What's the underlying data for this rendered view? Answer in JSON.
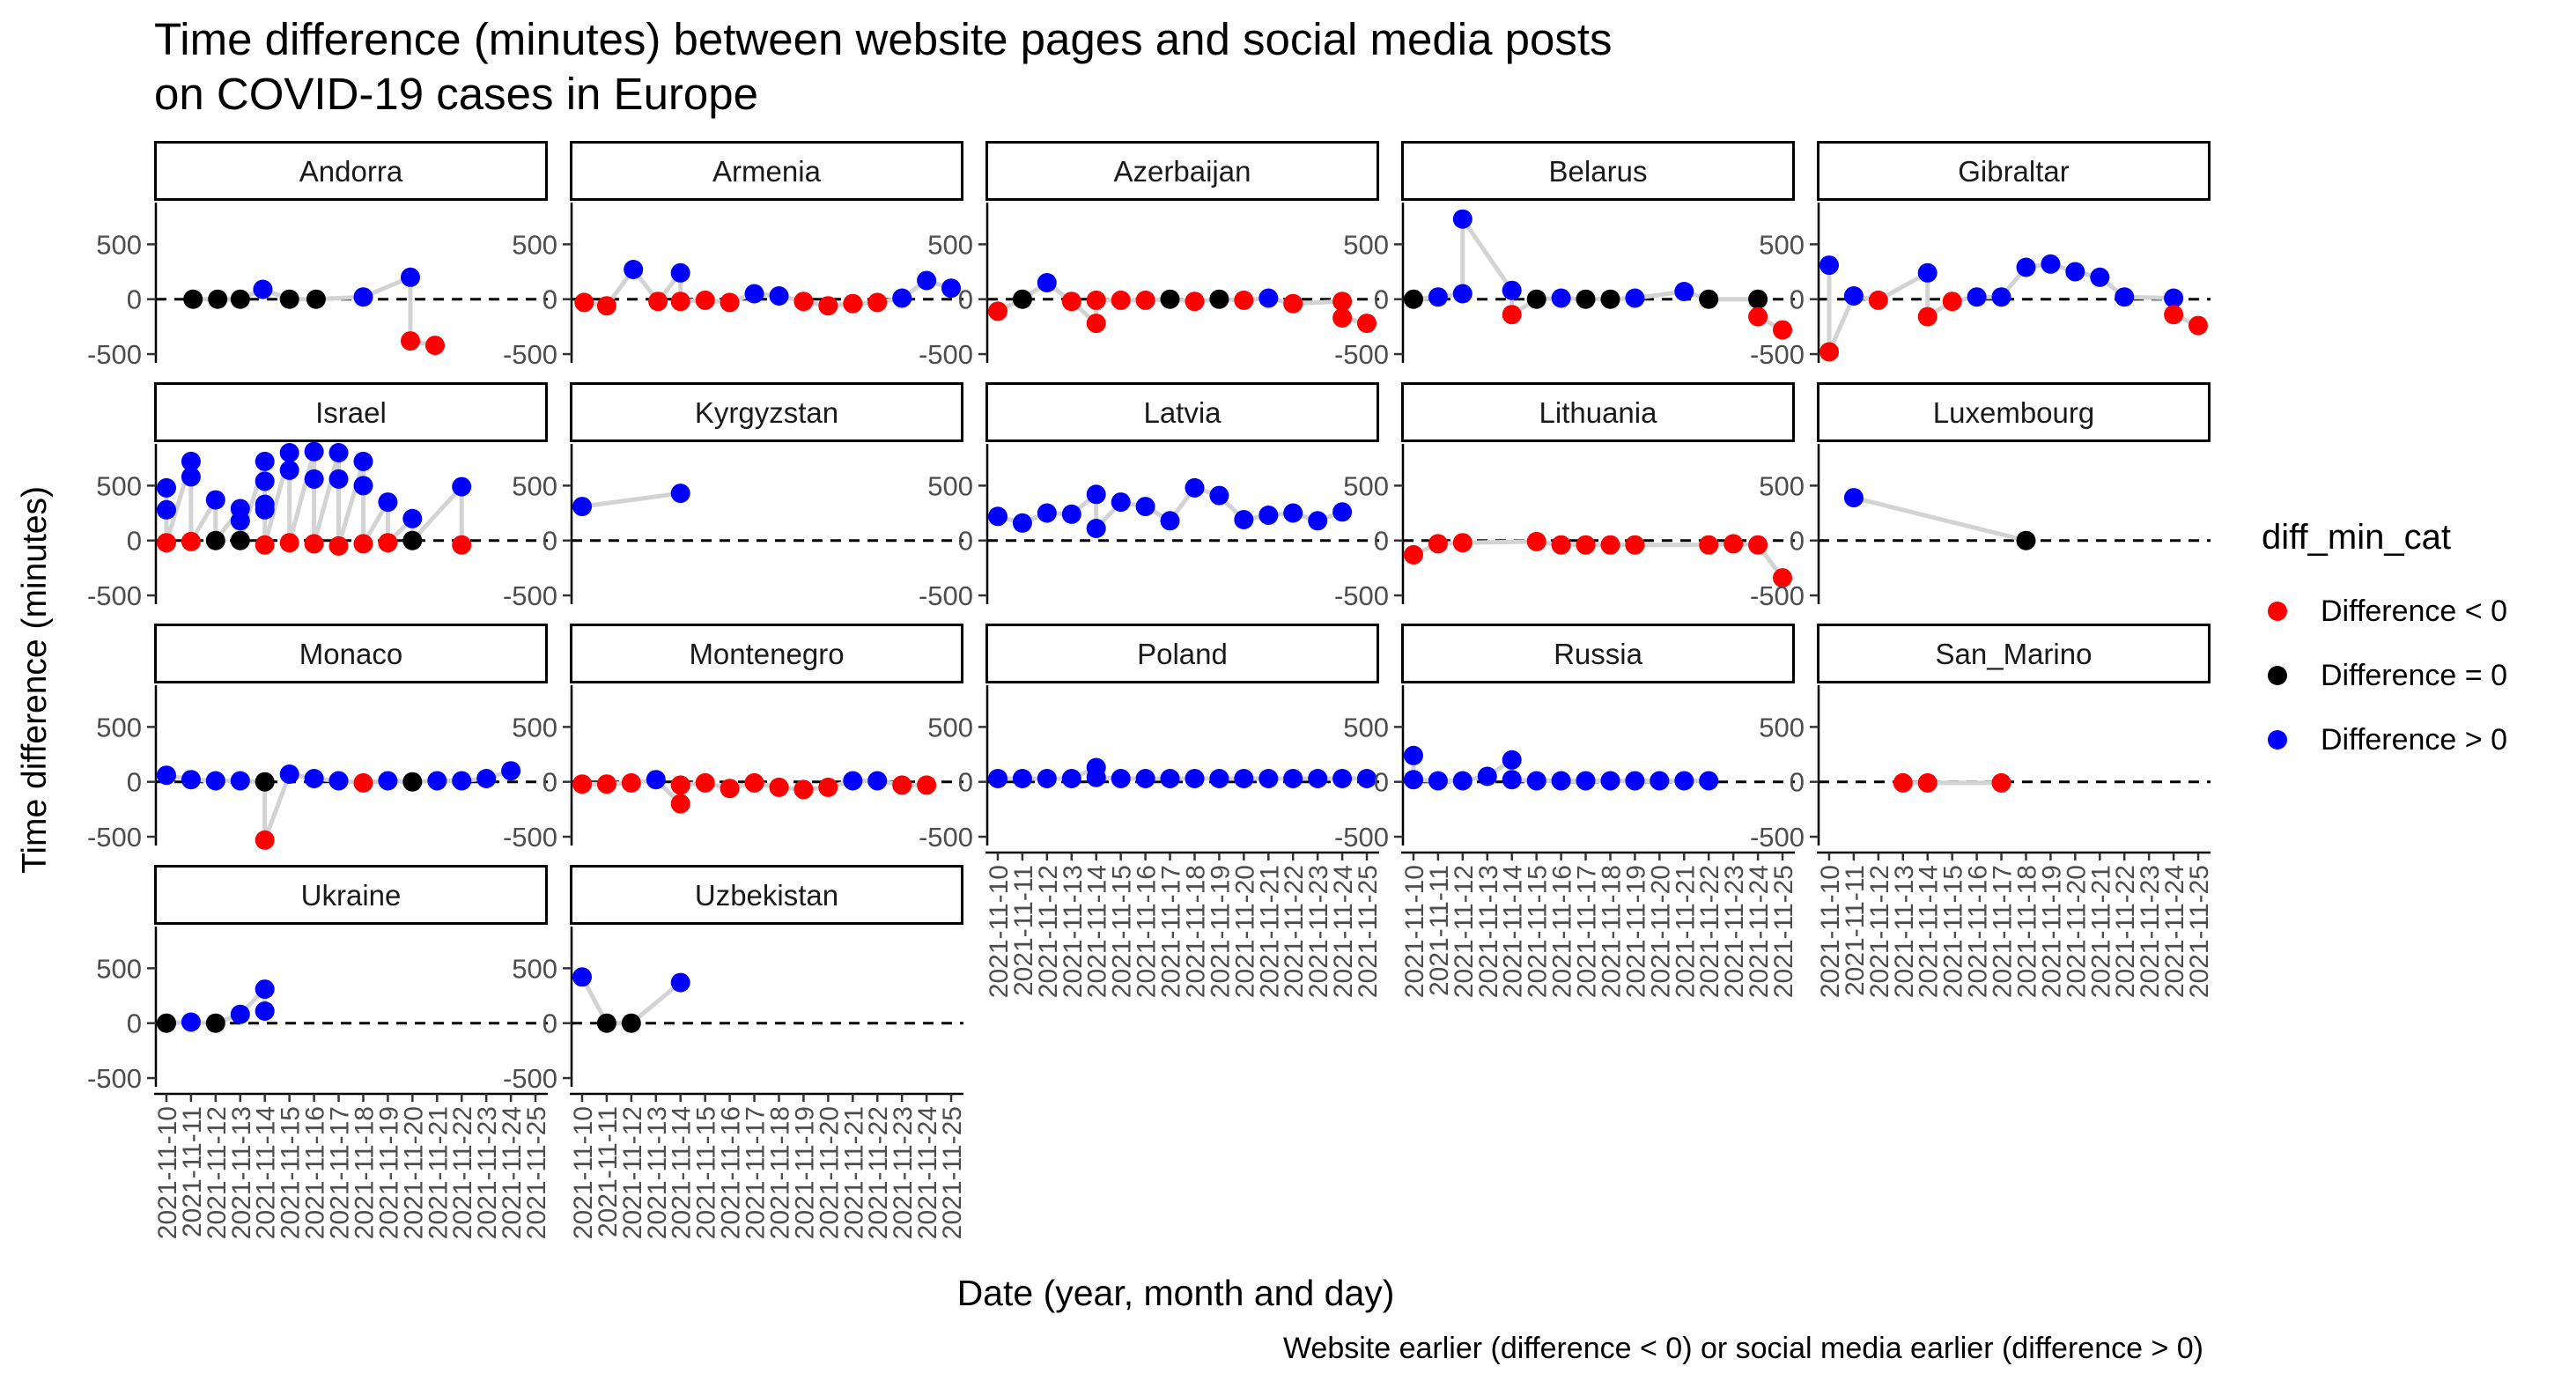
{
  "title": "Time difference (minutes) between website pages and social media posts\non COVID-19 cases in Europe",
  "xlabel": "Date (year, month and day)",
  "ylabel": "Time difference (minutes)",
  "caption": "Website earlier (difference < 0) or social media earlier (difference > 0)",
  "legend": {
    "title": "diff_min_cat",
    "position": "right",
    "items": [
      {
        "label": "Difference < 0",
        "color": "#FF0000"
      },
      {
        "label": "Difference = 0",
        "color": "#000000"
      },
      {
        "label": "Difference > 0",
        "color": "#0000FF"
      }
    ]
  },
  "chart_data": {
    "type": "scatter",
    "facet_grid": "5 columns, shared axes",
    "x_ticks": [
      "2021-11-10",
      "2021-11-11",
      "2021-11-12",
      "2021-11-13",
      "2021-11-14",
      "2021-11-15",
      "2021-11-16",
      "2021-11-17",
      "2021-11-18",
      "2021-11-19",
      "2021-11-20",
      "2021-11-21",
      "2021-11-22",
      "2021-11-23",
      "2021-11-24",
      "2021-11-25"
    ],
    "xlim": [
      "2021-11-09T12:00",
      "2021-11-25T12:00"
    ],
    "y_ticks": [
      500,
      0,
      -500
    ],
    "y_tick_labels": [
      "500",
      "0",
      "-500"
    ],
    "ylim": [
      -580,
      880
    ],
    "reference_line": 0,
    "colors": {
      "neg": "#FF0000",
      "zero": "#000000",
      "pos": "#0000FF",
      "line": "#D3D3D3"
    },
    "panels": [
      {
        "name": "Andorra",
        "points": [
          [
            "2021-11-11T02:00",
            0
          ],
          [
            "2021-11-12T02:00",
            0
          ],
          [
            "2021-11-13T00:00",
            0
          ],
          [
            "2021-11-13T22:00",
            90
          ],
          [
            "2021-11-15T00:00",
            0
          ],
          [
            "2021-11-16T02:00",
            0
          ],
          [
            "2021-11-18T00:00",
            20
          ],
          [
            "2021-11-19T22:00",
            200
          ],
          [
            "2021-11-19T22:00",
            -380
          ],
          [
            "2021-11-20T22:00",
            -420
          ]
        ]
      },
      {
        "name": "Armenia",
        "points": [
          [
            "2021-11-10T02:00",
            -30
          ],
          [
            "2021-11-11T00:00",
            -60
          ],
          [
            "2021-11-12T02:00",
            270
          ],
          [
            "2021-11-13T02:00",
            -20
          ],
          [
            "2021-11-14T00:00",
            240
          ],
          [
            "2021-11-14T00:00",
            -20
          ],
          [
            "2021-11-15T00:00",
            -10
          ],
          [
            "2021-11-16T00:00",
            -30
          ],
          [
            "2021-11-17T00:00",
            50
          ],
          [
            "2021-11-18T00:00",
            30
          ],
          [
            "2021-11-19T00:00",
            -20
          ],
          [
            "2021-11-20T00:00",
            -60
          ],
          [
            "2021-11-21T00:00",
            -40
          ],
          [
            "2021-11-22T00:00",
            -30
          ],
          [
            "2021-11-23T00:00",
            10
          ],
          [
            "2021-11-24T00:00",
            170
          ],
          [
            "2021-11-25T00:00",
            100
          ]
        ]
      },
      {
        "name": "Azerbaijan",
        "points": [
          [
            "2021-11-10T00:00",
            -110
          ],
          [
            "2021-11-11T00:00",
            0
          ],
          [
            "2021-11-12T00:00",
            150
          ],
          [
            "2021-11-13T00:00",
            -20
          ],
          [
            "2021-11-14T00:00",
            -220
          ],
          [
            "2021-11-14T00:00",
            -10
          ],
          [
            "2021-11-15T00:00",
            -10
          ],
          [
            "2021-11-16T00:00",
            -10
          ],
          [
            "2021-11-17T00:00",
            0
          ],
          [
            "2021-11-18T00:00",
            -20
          ],
          [
            "2021-11-19T00:00",
            0
          ],
          [
            "2021-11-20T00:00",
            -10
          ],
          [
            "2021-11-21T00:00",
            10
          ],
          [
            "2021-11-22T00:00",
            -40
          ],
          [
            "2021-11-24T00:00",
            -20
          ],
          [
            "2021-11-24T00:00",
            -170
          ],
          [
            "2021-11-25T00:00",
            -220
          ]
        ]
      },
      {
        "name": "Belarus",
        "points": [
          [
            "2021-11-10T00:00",
            0
          ],
          [
            "2021-11-11T00:00",
            20
          ],
          [
            "2021-11-12T00:00",
            50
          ],
          [
            "2021-11-12T00:00",
            730
          ],
          [
            "2021-11-14T00:00",
            80
          ],
          [
            "2021-11-14T00:00",
            -140
          ],
          [
            "2021-11-15T00:00",
            0
          ],
          [
            "2021-11-16T00:00",
            10
          ],
          [
            "2021-11-17T00:00",
            0
          ],
          [
            "2021-11-18T00:00",
            0
          ],
          [
            "2021-11-19T00:00",
            10
          ],
          [
            "2021-11-21T00:00",
            70
          ],
          [
            "2021-11-22T00:00",
            0
          ],
          [
            "2021-11-24T00:00",
            0
          ],
          [
            "2021-11-24T00:00",
            -160
          ],
          [
            "2021-11-25T00:00",
            -280
          ]
        ]
      },
      {
        "name": "Gibraltar",
        "points": [
          [
            "2021-11-10T00:00",
            310
          ],
          [
            "2021-11-10T00:00",
            -480
          ],
          [
            "2021-11-11T00:00",
            30
          ],
          [
            "2021-11-12T00:00",
            -10
          ],
          [
            "2021-11-14T00:00",
            240
          ],
          [
            "2021-11-14T00:00",
            -160
          ],
          [
            "2021-11-15T00:00",
            -20
          ],
          [
            "2021-11-16T00:00",
            20
          ],
          [
            "2021-11-17T00:00",
            20
          ],
          [
            "2021-11-18T00:00",
            290
          ],
          [
            "2021-11-19T00:00",
            320
          ],
          [
            "2021-11-20T00:00",
            250
          ],
          [
            "2021-11-21T00:00",
            200
          ],
          [
            "2021-11-22T00:00",
            20
          ],
          [
            "2021-11-24T00:00",
            10
          ],
          [
            "2021-11-24T00:00",
            -140
          ],
          [
            "2021-11-25T00:00",
            -240
          ]
        ]
      },
      {
        "name": "Israel",
        "points": [
          [
            "2021-11-10T00:00",
            480
          ],
          [
            "2021-11-10T00:00",
            280
          ],
          [
            "2021-11-10T00:00",
            -20
          ],
          [
            "2021-11-11T00:00",
            720
          ],
          [
            "2021-11-11T00:00",
            580
          ],
          [
            "2021-11-11T00:00",
            -10
          ],
          [
            "2021-11-12T00:00",
            370
          ],
          [
            "2021-11-12T00:00",
            0
          ],
          [
            "2021-11-13T00:00",
            290
          ],
          [
            "2021-11-13T00:00",
            180
          ],
          [
            "2021-11-13T00:00",
            0
          ],
          [
            "2021-11-14T00:00",
            720
          ],
          [
            "2021-11-14T00:00",
            540
          ],
          [
            "2021-11-14T00:00",
            330
          ],
          [
            "2021-11-14T00:00",
            280
          ],
          [
            "2021-11-14T00:00",
            -40
          ],
          [
            "2021-11-15T00:00",
            800
          ],
          [
            "2021-11-15T00:00",
            640
          ],
          [
            "2021-11-15T00:00",
            -20
          ],
          [
            "2021-11-16T00:00",
            810
          ],
          [
            "2021-11-16T00:00",
            560
          ],
          [
            "2021-11-16T00:00",
            -30
          ],
          [
            "2021-11-17T00:00",
            800
          ],
          [
            "2021-11-17T00:00",
            560
          ],
          [
            "2021-11-17T00:00",
            -50
          ],
          [
            "2021-11-18T00:00",
            720
          ],
          [
            "2021-11-18T00:00",
            500
          ],
          [
            "2021-11-18T00:00",
            -30
          ],
          [
            "2021-11-19T00:00",
            350
          ],
          [
            "2021-11-19T00:00",
            -20
          ],
          [
            "2021-11-20T00:00",
            200
          ],
          [
            "2021-11-20T00:00",
            0
          ],
          [
            "2021-11-22T00:00",
            490
          ],
          [
            "2021-11-22T00:00",
            -40
          ]
        ]
      },
      {
        "name": "Kyrgyzstan",
        "points": [
          [
            "2021-11-10T00:00",
            310
          ],
          [
            "2021-11-14T00:00",
            430
          ]
        ]
      },
      {
        "name": "Latvia",
        "points": [
          [
            "2021-11-10T00:00",
            220
          ],
          [
            "2021-11-11T00:00",
            160
          ],
          [
            "2021-11-12T00:00",
            250
          ],
          [
            "2021-11-13T00:00",
            240
          ],
          [
            "2021-11-14T00:00",
            420
          ],
          [
            "2021-11-14T00:00",
            110
          ],
          [
            "2021-11-15T00:00",
            350
          ],
          [
            "2021-11-16T00:00",
            310
          ],
          [
            "2021-11-17T00:00",
            180
          ],
          [
            "2021-11-18T00:00",
            480
          ],
          [
            "2021-11-19T00:00",
            410
          ],
          [
            "2021-11-20T00:00",
            190
          ],
          [
            "2021-11-21T00:00",
            230
          ],
          [
            "2021-11-22T00:00",
            250
          ],
          [
            "2021-11-23T00:00",
            180
          ],
          [
            "2021-11-24T00:00",
            260
          ]
        ]
      },
      {
        "name": "Lithuania",
        "points": [
          [
            "2021-11-10T00:00",
            -130
          ],
          [
            "2021-11-11T00:00",
            -30
          ],
          [
            "2021-11-12T00:00",
            -20
          ],
          [
            "2021-11-15T00:00",
            -10
          ],
          [
            "2021-11-16T00:00",
            -40
          ],
          [
            "2021-11-17T00:00",
            -40
          ],
          [
            "2021-11-18T00:00",
            -40
          ],
          [
            "2021-11-19T00:00",
            -40
          ],
          [
            "2021-11-22T00:00",
            -40
          ],
          [
            "2021-11-23T00:00",
            -30
          ],
          [
            "2021-11-24T00:00",
            -40
          ],
          [
            "2021-11-25T00:00",
            -340
          ]
        ]
      },
      {
        "name": "Luxembourg",
        "points": [
          [
            "2021-11-11T00:00",
            390
          ],
          [
            "2021-11-18T00:00",
            0
          ]
        ]
      },
      {
        "name": "Monaco",
        "points": [
          [
            "2021-11-10T00:00",
            60
          ],
          [
            "2021-11-11T00:00",
            20
          ],
          [
            "2021-11-12T00:00",
            10
          ],
          [
            "2021-11-13T00:00",
            10
          ],
          [
            "2021-11-14T00:00",
            0
          ],
          [
            "2021-11-14T00:00",
            -530
          ],
          [
            "2021-11-15T00:00",
            70
          ],
          [
            "2021-11-16T00:00",
            30
          ],
          [
            "2021-11-17T00:00",
            10
          ],
          [
            "2021-11-18T00:00",
            -10
          ],
          [
            "2021-11-19T00:00",
            10
          ],
          [
            "2021-11-20T00:00",
            0
          ],
          [
            "2021-11-21T00:00",
            10
          ],
          [
            "2021-11-22T00:00",
            10
          ],
          [
            "2021-11-23T00:00",
            30
          ],
          [
            "2021-11-24T00:00",
            100
          ]
        ]
      },
      {
        "name": "Montenegro",
        "points": [
          [
            "2021-11-10T00:00",
            -20
          ],
          [
            "2021-11-11T00:00",
            -20
          ],
          [
            "2021-11-12T00:00",
            -10
          ],
          [
            "2021-11-13T00:00",
            20
          ],
          [
            "2021-11-14T00:00",
            -200
          ],
          [
            "2021-11-14T00:00",
            -30
          ],
          [
            "2021-11-15T00:00",
            -10
          ],
          [
            "2021-11-16T00:00",
            -60
          ],
          [
            "2021-11-17T00:00",
            -10
          ],
          [
            "2021-11-18T00:00",
            -50
          ],
          [
            "2021-11-19T00:00",
            -70
          ],
          [
            "2021-11-20T00:00",
            -50
          ],
          [
            "2021-11-21T00:00",
            10
          ],
          [
            "2021-11-22T00:00",
            10
          ],
          [
            "2021-11-23T00:00",
            -30
          ],
          [
            "2021-11-24T00:00",
            -30
          ]
        ]
      },
      {
        "name": "Poland",
        "points": [
          [
            "2021-11-10T00:00",
            30
          ],
          [
            "2021-11-11T00:00",
            30
          ],
          [
            "2021-11-12T00:00",
            30
          ],
          [
            "2021-11-13T00:00",
            30
          ],
          [
            "2021-11-14T00:00",
            130
          ],
          [
            "2021-11-14T00:00",
            40
          ],
          [
            "2021-11-15T00:00",
            30
          ],
          [
            "2021-11-16T00:00",
            30
          ],
          [
            "2021-11-17T00:00",
            30
          ],
          [
            "2021-11-18T00:00",
            30
          ],
          [
            "2021-11-19T00:00",
            30
          ],
          [
            "2021-11-20T00:00",
            30
          ],
          [
            "2021-11-21T00:00",
            30
          ],
          [
            "2021-11-22T00:00",
            30
          ],
          [
            "2021-11-23T00:00",
            30
          ],
          [
            "2021-11-24T00:00",
            30
          ],
          [
            "2021-11-25T00:00",
            30
          ]
        ]
      },
      {
        "name": "Russia",
        "points": [
          [
            "2021-11-10T00:00",
            240
          ],
          [
            "2021-11-10T00:00",
            20
          ],
          [
            "2021-11-11T00:00",
            10
          ],
          [
            "2021-11-12T00:00",
            10
          ],
          [
            "2021-11-13T00:00",
            50
          ],
          [
            "2021-11-14T00:00",
            200
          ],
          [
            "2021-11-14T00:00",
            20
          ],
          [
            "2021-11-15T00:00",
            10
          ],
          [
            "2021-11-16T00:00",
            10
          ],
          [
            "2021-11-17T00:00",
            10
          ],
          [
            "2021-11-18T00:00",
            10
          ],
          [
            "2021-11-19T00:00",
            10
          ],
          [
            "2021-11-20T00:00",
            10
          ],
          [
            "2021-11-21T00:00",
            10
          ],
          [
            "2021-11-22T00:00",
            10
          ]
        ]
      },
      {
        "name": "San_Marino",
        "points": [
          [
            "2021-11-13T00:00",
            -10
          ],
          [
            "2021-11-14T00:00",
            -10
          ],
          [
            "2021-11-17T00:00",
            -10
          ]
        ]
      },
      {
        "name": "Ukraine",
        "points": [
          [
            "2021-11-10T00:00",
            0
          ],
          [
            "2021-11-11T00:00",
            10
          ],
          [
            "2021-11-12T00:00",
            0
          ],
          [
            "2021-11-13T00:00",
            80
          ],
          [
            "2021-11-14T00:00",
            310
          ],
          [
            "2021-11-14T00:00",
            110
          ]
        ]
      },
      {
        "name": "Uzbekistan",
        "points": [
          [
            "2021-11-10T00:00",
            420
          ],
          [
            "2021-11-11T00:00",
            0
          ],
          [
            "2021-11-12T00:00",
            0
          ],
          [
            "2021-11-14T00:00",
            370
          ]
        ]
      }
    ]
  }
}
